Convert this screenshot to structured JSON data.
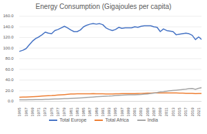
{
  "chart_data": {
    "type": "line",
    "title": "Energy Consumption (Gigajoules per capita)",
    "x": [
      1965,
      1966,
      1967,
      1968,
      1969,
      1970,
      1971,
      1972,
      1973,
      1974,
      1975,
      1976,
      1977,
      1978,
      1979,
      1980,
      1981,
      1982,
      1983,
      1984,
      1985,
      1986,
      1987,
      1988,
      1989,
      1990,
      1991,
      1992,
      1993,
      1994,
      1995,
      1996,
      1997,
      1998,
      1999,
      2000,
      2001,
      2002,
      2003,
      2004,
      2005,
      2006,
      2007,
      2008,
      2009,
      2010,
      2011,
      2012,
      2013,
      2014,
      2015,
      2016,
      2017,
      2018,
      2019,
      2020,
      2021,
      2022
    ],
    "series": [
      {
        "name": "Total Europe",
        "color": "#4472c4",
        "values": [
          94,
          96,
          99,
          106,
          113,
          118,
          121,
          125,
          130,
          128,
          127,
          133,
          135,
          138,
          141,
          138,
          134,
          131,
          131,
          134,
          140,
          143,
          145,
          146,
          145,
          146,
          144,
          138,
          135,
          133,
          135,
          139,
          137,
          138,
          138,
          138,
          140,
          139,
          141,
          142,
          142,
          142,
          140,
          139,
          131,
          136,
          133,
          132,
          131,
          125,
          126,
          127,
          128,
          127,
          124,
          116,
          121,
          116
        ]
      },
      {
        "name": "Total Africa",
        "color": "#ed7d31",
        "values": [
          7.8,
          8.0,
          8.1,
          8.3,
          8.6,
          9.0,
          9.5,
          10.0,
          10.4,
          10.8,
          11.0,
          11.4,
          11.8,
          12.2,
          12.7,
          13.3,
          13.8,
          14.0,
          14.1,
          14.2,
          14.3,
          14.2,
          14.3,
          14.4,
          14.3,
          14.3,
          14.1,
          14.0,
          13.9,
          14.0,
          14.1,
          14.3,
          14.4,
          14.5,
          14.5,
          14.6,
          14.6,
          14.8,
          15.0,
          15.3,
          15.4,
          15.6,
          15.8,
          15.9,
          15.8,
          15.9,
          15.7,
          15.8,
          15.8,
          15.8,
          15.6,
          15.4,
          15.3,
          15.2,
          15.2,
          14.4,
          14.8,
          14.7
        ]
      },
      {
        "name": "India",
        "color": "#a5a5a5",
        "values": [
          2.8,
          2.9,
          3.0,
          3.2,
          3.3,
          3.4,
          3.5,
          3.7,
          3.8,
          4.0,
          4.2,
          4.4,
          4.6,
          4.9,
          5.1,
          5.3,
          5.6,
          5.9,
          6.2,
          6.5,
          6.9,
          7.3,
          7.7,
          8.2,
          8.7,
          9.0,
          9.4,
          9.8,
          10.0,
          10.4,
          11.0,
          11.3,
          11.6,
          11.8,
          12.1,
          12.3,
          12.4,
          12.6,
          12.8,
          13.4,
          14.0,
          14.7,
          15.6,
          16.5,
          17.6,
          18.2,
          19.0,
          19.9,
          20.6,
          21.1,
          21.7,
          22.4,
          23.0,
          23.8,
          24.2,
          22.6,
          24.5,
          25.8
        ]
      }
    ],
    "xlim": [
      1965,
      2022
    ],
    "xticks": [
      1965,
      1967,
      1969,
      1971,
      1973,
      1975,
      1977,
      1979,
      1981,
      1983,
      1985,
      1987,
      1989,
      1991,
      1993,
      1995,
      1997,
      1999,
      2001,
      2003,
      2005,
      2007,
      2009,
      2011,
      2013,
      2015,
      2017,
      2019,
      2021
    ],
    "ylim": [
      0,
      160
    ],
    "yticks": [
      {
        "value": 0,
        "label": "0.0"
      },
      {
        "value": 20,
        "label": "20.0"
      },
      {
        "value": 40,
        "label": "40.0"
      },
      {
        "value": 60,
        "label": "60.0"
      },
      {
        "value": 80,
        "label": "80.0"
      },
      {
        "value": 100,
        "label": "100.0"
      },
      {
        "value": 120,
        "label": "120.0"
      },
      {
        "value": 140,
        "label": "140.0"
      },
      {
        "value": 160,
        "label": "160.0"
      }
    ],
    "grid": true,
    "legend": "bottom"
  }
}
